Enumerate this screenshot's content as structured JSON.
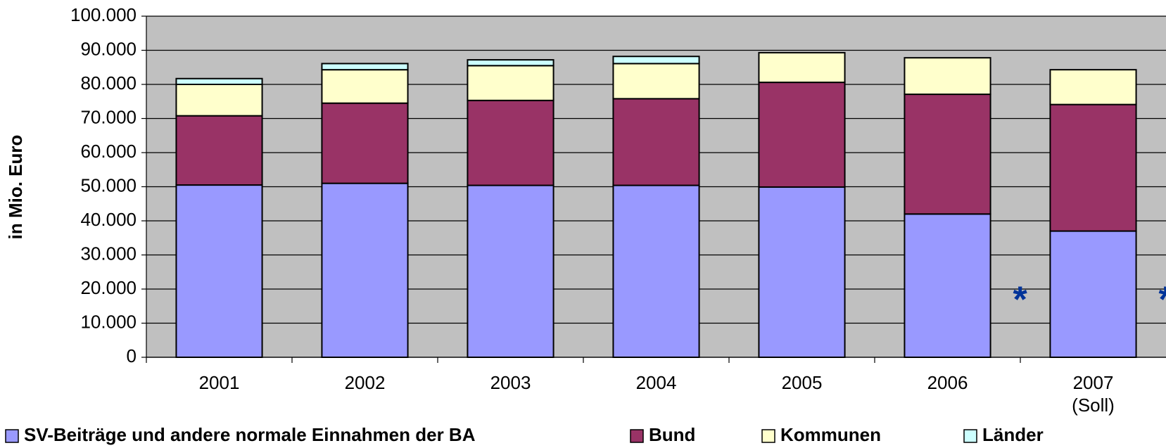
{
  "chart_data": {
    "type": "stacked-bar",
    "y_label": "in Mio. Euro",
    "categories": [
      "2001",
      "2002",
      "2003",
      "2004",
      "2005",
      "2006",
      "2007\n(Soll)"
    ],
    "series": [
      {
        "name": "SV-Beiträge und andere normale Einnahmen der BA",
        "color": "#9999ff",
        "values": [
          50500,
          51000,
          50400,
          50400,
          49900,
          42000,
          37000
        ]
      },
      {
        "name": "Bund",
        "color": "#993366",
        "values": [
          20300,
          23500,
          24900,
          25400,
          30700,
          35100,
          37100
        ]
      },
      {
        "name": "Kommunen",
        "color": "#ffffcc",
        "values": [
          9200,
          9800,
          10200,
          10300,
          8700,
          10700,
          10200
        ]
      },
      {
        "name": "Länder",
        "color": "#ccffff",
        "values": [
          1700,
          1800,
          1700,
          2100,
          0,
          0,
          0
        ]
      }
    ],
    "markers": [
      null,
      null,
      null,
      null,
      null,
      "*",
      "*"
    ],
    "ylim": [
      0,
      100000
    ],
    "yticks": [
      0,
      {
        "value": 10000,
        "label": "10.000"
      },
      {
        "value": 20000,
        "label": "20.000"
      },
      {
        "value": 30000,
        "label": "30.000"
      },
      {
        "value": 40000,
        "label": "40.000"
      },
      {
        "value": 50000,
        "label": "50.000"
      },
      {
        "value": 60000,
        "label": "60.000"
      },
      {
        "value": 70000,
        "label": "70.000"
      },
      {
        "value": 80000,
        "label": "80.000"
      },
      {
        "value": 90000,
        "label": "90.000"
      },
      {
        "value": 100000,
        "label": "100.000"
      }
    ],
    "grid": true,
    "legend": "bottom"
  }
}
